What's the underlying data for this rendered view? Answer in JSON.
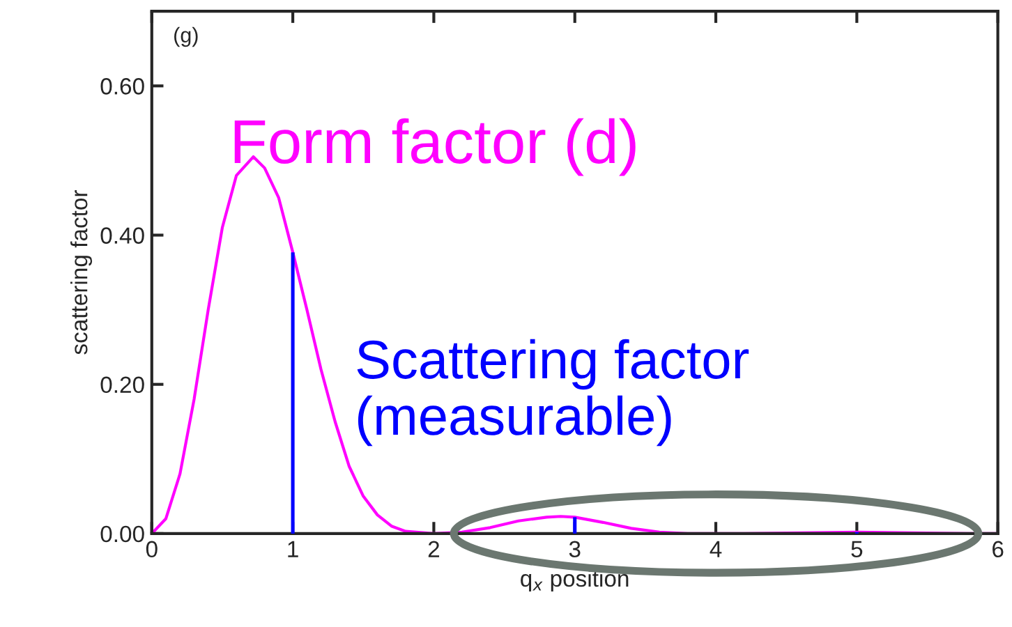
{
  "chart_data": {
    "type": "line",
    "xlabel": "q$_{x}$ position",
    "ylabel": "scattering factor",
    "annotations": [
      "(g)"
    ],
    "xlim": [
      0,
      6
    ],
    "ylim": [
      0,
      0.7
    ],
    "xticks": [
      0,
      1,
      2,
      3,
      4,
      5,
      6
    ],
    "yticks": [
      {
        "value": 0,
        "label": "0.00"
      },
      {
        "value": 0.2,
        "label": "0.20"
      },
      {
        "value": 0.4,
        "label": "0.40"
      },
      {
        "value": 0.6,
        "label": "0.60"
      }
    ],
    "grid": false,
    "legend": false,
    "marker": "none",
    "line_style": "solid",
    "series": [
      {
        "name": "Form factor (d)",
        "color": "#ff00ff",
        "x": [
          0,
          0.1,
          0.2,
          0.3,
          0.4,
          0.5,
          0.6,
          0.72,
          0.8,
          0.9,
          1.0,
          1.1,
          1.2,
          1.3,
          1.4,
          1.5,
          1.6,
          1.7,
          1.8,
          2.0,
          2.2,
          2.4,
          2.6,
          2.8,
          2.9,
          3.0,
          3.2,
          3.4,
          3.6,
          3.8,
          4.2,
          4.6,
          5.0,
          5.4,
          5.8,
          6.0
        ],
        "values": [
          0,
          0.02,
          0.08,
          0.18,
          0.3,
          0.41,
          0.48,
          0.505,
          0.49,
          0.45,
          0.377,
          0.3,
          0.22,
          0.15,
          0.09,
          0.05,
          0.025,
          0.01,
          0.003,
          0,
          0.002,
          0.008,
          0.017,
          0.022,
          0.023,
          0.022,
          0.015,
          0.007,
          0.002,
          0,
          0,
          0.001,
          0.002,
          0.001,
          0,
          0
        ]
      },
      {
        "name": "Scattering factor\n(measurable)",
        "type": "bar",
        "color": "#0000ff",
        "x": [
          1,
          2,
          3,
          4,
          5
        ],
        "values": [
          0.377,
          null,
          0.022,
          null,
          0.002
        ]
      }
    ]
  }
}
